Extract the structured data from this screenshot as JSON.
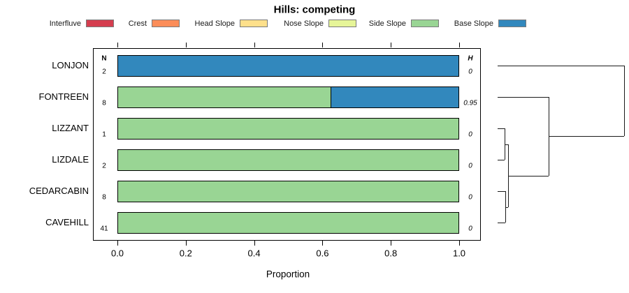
{
  "chart_data": {
    "type": "bar",
    "orientation": "horizontal-stacked-proportions",
    "title": "Hills: competing",
    "xlabel": "Proportion",
    "xlim": [
      0,
      1
    ],
    "x_ticks": [
      {
        "value": 0.0,
        "label": "0.0"
      },
      {
        "value": 0.2,
        "label": "0.2"
      },
      {
        "value": 0.4,
        "label": "0.4"
      },
      {
        "value": 0.6,
        "label": "0.6"
      },
      {
        "value": 0.8,
        "label": "0.8"
      },
      {
        "value": 1.0,
        "label": "1.0"
      }
    ],
    "legend_position": "top",
    "legend": [
      {
        "label": "Interfluve",
        "color": "#d53e4f"
      },
      {
        "label": "Crest",
        "color": "#fc8d59"
      },
      {
        "label": "Head Slope",
        "color": "#fee08b"
      },
      {
        "label": "Nose Slope",
        "color": "#e6f598"
      },
      {
        "label": "Side Slope",
        "color": "#99d594"
      },
      {
        "label": "Base Slope",
        "color": "#3288bd"
      }
    ],
    "columns": {
      "n_header": "N",
      "h_header": "H"
    },
    "rows": [
      {
        "label": "LONJON",
        "n": "2",
        "h": "0",
        "segments": [
          {
            "category": "Base Slope",
            "value": 1.0
          }
        ]
      },
      {
        "label": "FONTREEN",
        "n": "8",
        "h": "0.95",
        "segments": [
          {
            "category": "Side Slope",
            "value": 0.625
          },
          {
            "category": "Base Slope",
            "value": 0.375
          }
        ]
      },
      {
        "label": "LIZZANT",
        "n": "1",
        "h": "0",
        "segments": [
          {
            "category": "Side Slope",
            "value": 1.0
          }
        ]
      },
      {
        "label": "LIZDALE",
        "n": "2",
        "h": "0",
        "segments": [
          {
            "category": "Side Slope",
            "value": 1.0
          }
        ]
      },
      {
        "label": "CEDARCABIN",
        "n": "8",
        "h": "0",
        "segments": [
          {
            "category": "Side Slope",
            "value": 1.0
          }
        ]
      },
      {
        "label": "CAVEHILL",
        "n": "41",
        "h": "0",
        "segments": [
          {
            "category": "Side Slope",
            "value": 1.0
          }
        ]
      }
    ],
    "dendrogram": {
      "orientation": "right",
      "merges": [
        {
          "a": "LIZZANT",
          "b": "LIZDALE",
          "height": 0.053
        },
        {
          "a": "CEDARCABIN",
          "b": "CAVEHILL",
          "height": 0.061
        },
        {
          "a": "merge-0",
          "b": "merge-1",
          "height": 0.081
        },
        {
          "a": "FONTREEN",
          "b": "merge-2",
          "height": 0.403
        },
        {
          "a": "LONJON",
          "b": "merge-3",
          "height": 1.0
        }
      ]
    }
  }
}
